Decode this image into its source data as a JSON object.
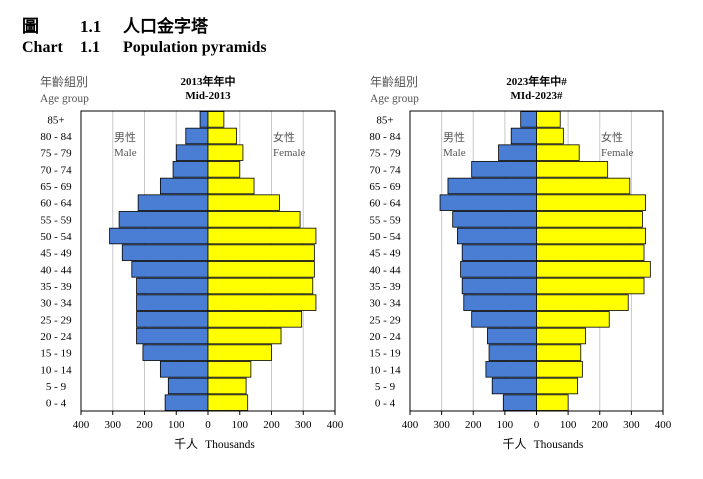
{
  "heading": {
    "zh_label": "圖",
    "zh_number": "1.1",
    "zh_title": "人口金字塔",
    "en_label": "Chart",
    "en_number": "1.1",
    "en_title": "Population pyramids"
  },
  "colors": {
    "male": "#4a7ed4",
    "female": "#ffff00",
    "bar_outline": "#000000",
    "grid": "#c8c8c8",
    "label_gray": "#555555"
  },
  "chart_data": [
    {
      "type": "bar",
      "orientation": "horizontal-pyramid",
      "title_line1": "2013年年中",
      "title_line2": "Mid-2013",
      "ylabel_zh": "年齡組別",
      "ylabel_en": "Age group",
      "xlabel_zh": "千人",
      "xlabel_en": "Thousands",
      "male_label_zh": "男性",
      "male_label_en": "Male",
      "female_label_zh": "女性",
      "female_label_en": "Female",
      "xlim": [
        -400,
        400
      ],
      "x_ticks": [
        -400,
        -300,
        -200,
        -100,
        0,
        100,
        200,
        300,
        400
      ],
      "x_tick_labels": [
        "400",
        "300",
        "200",
        "100",
        "0",
        "100",
        "200",
        "300",
        "400"
      ],
      "grid": true,
      "categories": [
        "0 - 4",
        "5 - 9",
        "10 - 14",
        "15 - 19",
        "20 - 24",
        "25 - 29",
        "30 - 34",
        "35 - 39",
        "40 - 44",
        "45 - 49",
        "50 - 54",
        "55 - 59",
        "60 - 64",
        "65 - 69",
        "70 - 74",
        "75 - 79",
        "80 - 84",
        "85+"
      ],
      "series": [
        {
          "name": "Male",
          "values": [
            135,
            125,
            150,
            205,
            225,
            225,
            225,
            225,
            240,
            270,
            310,
            280,
            220,
            150,
            110,
            100,
            70,
            25
          ]
        },
        {
          "name": "Female",
          "values": [
            125,
            120,
            135,
            200,
            230,
            295,
            340,
            330,
            335,
            335,
            340,
            290,
            225,
            145,
            100,
            110,
            90,
            50
          ]
        }
      ]
    },
    {
      "type": "bar",
      "orientation": "horizontal-pyramid",
      "title_line1": "2023年年中#",
      "title_line2": "MId-2023#",
      "ylabel_zh": "年齡組別",
      "ylabel_en": "Age group",
      "xlabel_zh": "千人",
      "xlabel_en": "Thousands",
      "male_label_zh": "男性",
      "male_label_en": "Male",
      "female_label_zh": "女性",
      "female_label_en": "Female",
      "xlim": [
        -400,
        400
      ],
      "x_ticks": [
        -400,
        -300,
        -200,
        -100,
        0,
        100,
        200,
        300,
        400
      ],
      "x_tick_labels": [
        "400",
        "300",
        "200",
        "100",
        "0",
        "100",
        "200",
        "300",
        "400"
      ],
      "grid": true,
      "categories": [
        "0 - 4",
        "5 - 9",
        "10 - 14",
        "15 - 19",
        "20 - 24",
        "25 - 29",
        "30 - 34",
        "35 - 39",
        "40 - 44",
        "45 - 49",
        "50 - 54",
        "55 - 59",
        "60 - 64",
        "65 - 69",
        "70 - 74",
        "75 - 79",
        "80 - 84",
        "85+"
      ],
      "series": [
        {
          "name": "Male",
          "values": [
            105,
            140,
            160,
            150,
            155,
            205,
            230,
            235,
            240,
            235,
            250,
            265,
            305,
            280,
            205,
            120,
            80,
            50
          ]
        },
        {
          "name": "Female",
          "values": [
            100,
            130,
            145,
            140,
            155,
            230,
            290,
            340,
            360,
            340,
            345,
            335,
            345,
            295,
            225,
            135,
            85,
            75
          ]
        }
      ]
    }
  ]
}
